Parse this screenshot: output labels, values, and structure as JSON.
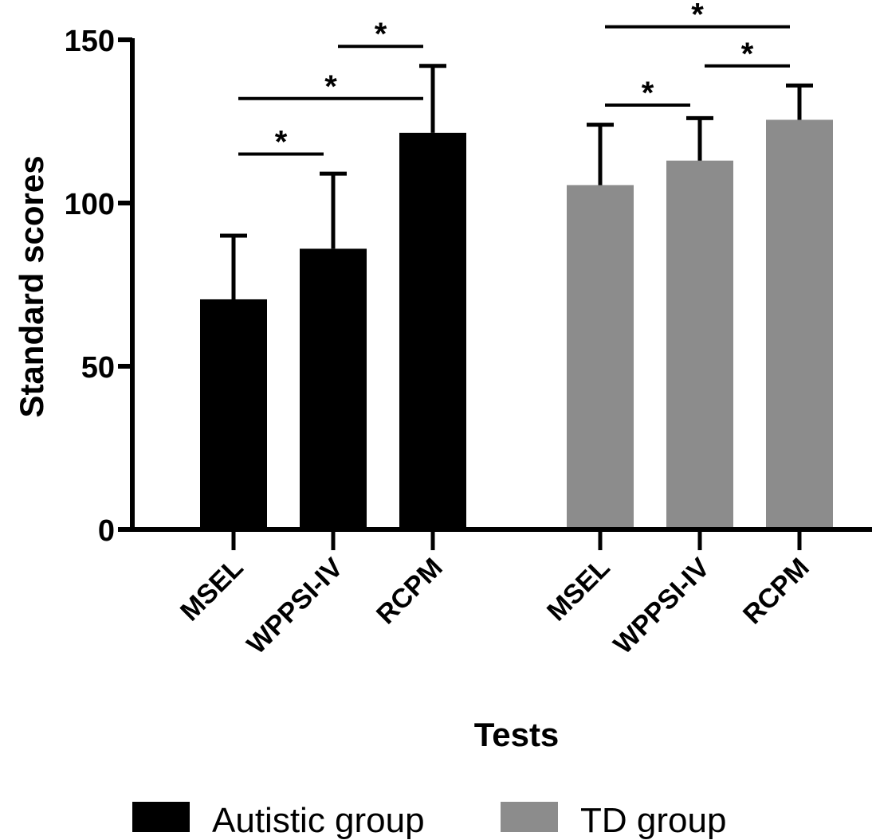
{
  "chart_data": {
    "type": "bar",
    "title": "",
    "xlabel": "Tests",
    "ylabel": "Standard scores",
    "ylim": [
      0,
      150
    ],
    "yticks": [
      0,
      50,
      100,
      150
    ],
    "groups": [
      {
        "name": "Autistic group",
        "color": "#000000",
        "categories": [
          "MSEL",
          "WPPSI-IV",
          "RCPM"
        ],
        "values": [
          70.5,
          86,
          121.5
        ],
        "error_upper": [
          90,
          109,
          142
        ]
      },
      {
        "name": "TD group",
        "color": "#8c8c8c",
        "categories": [
          "MSEL",
          "WPPSI-IV",
          "RCPM"
        ],
        "values": [
          105.5,
          113,
          125.5
        ],
        "error_upper": [
          124,
          126,
          136
        ]
      }
    ],
    "significance": [
      {
        "group": 0,
        "from": 0,
        "to": 1,
        "level": 115,
        "label": "*"
      },
      {
        "group": 0,
        "from": 0,
        "to": 2,
        "level": 132,
        "label": "*"
      },
      {
        "group": 0,
        "from": 1,
        "to": 2,
        "level": 148,
        "label": "*"
      },
      {
        "group": 1,
        "from": 0,
        "to": 1,
        "level": 130,
        "label": "*"
      },
      {
        "group": 1,
        "from": 1,
        "to": 2,
        "level": 142,
        "label": "*"
      },
      {
        "group": 1,
        "from": 0,
        "to": 2,
        "level": 154,
        "label": "*"
      }
    ],
    "legend": {
      "position": "bottom",
      "entries": [
        {
          "label": "Autistic group",
          "color": "#000000"
        },
        {
          "label": "TD group",
          "color": "#8c8c8c"
        }
      ]
    },
    "grid": false
  }
}
